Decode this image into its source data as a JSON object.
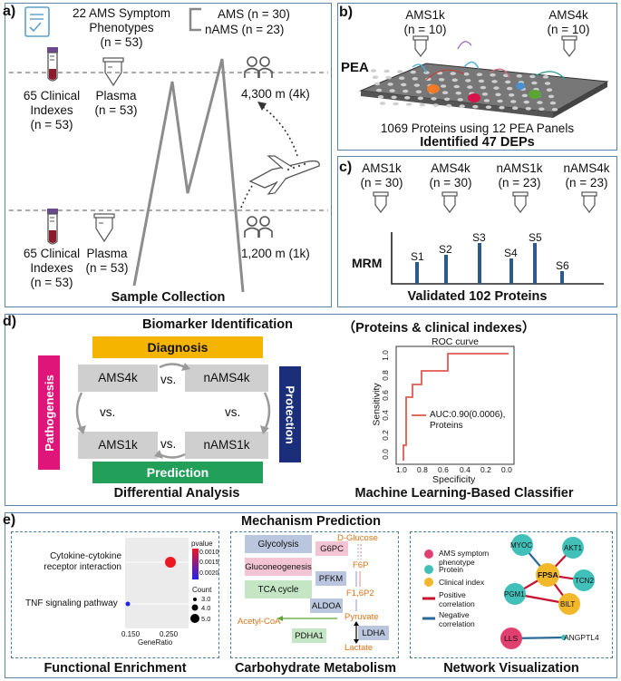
{
  "panel_a": {
    "label": "a)",
    "symptom_title_line1": "22 AMS Symptom",
    "symptom_title_line2": "Phenotypes",
    "symptom_n": "(n = 53)",
    "ams_group": "AMS (n = 30)",
    "nams_group": "nAMS (n = 23)",
    "clinical_4k_line1": "65 Clinical",
    "clinical_4k_line2": "Indexes",
    "clinical_4k_n": "(n = 53)",
    "plasma_4k_label": "Plasma",
    "plasma_4k_n": "(n = 53)",
    "altitude_high": "4,300 m (4k)",
    "clinical_1k_line1": "65 Clinical",
    "clinical_1k_line2": "Indexes",
    "clinical_1k_n": "(n = 53)",
    "plasma_1k_label": "Plasma",
    "plasma_1k_n": "(n = 53)",
    "altitude_low": "1,200 m (1k)",
    "title": "Sample Collection"
  },
  "panel_b": {
    "label": "b)",
    "ams1k": "AMS1k",
    "ams1k_n": "(n = 10)",
    "ams4k": "AMS4k",
    "ams4k_n": "(n = 10)",
    "pea": "PEA",
    "proteins_text": "1069 Proteins using 12 PEA Panels",
    "deps": "Identified 47 DEPs"
  },
  "panel_c": {
    "label": "c)",
    "groups": [
      {
        "name": "AMS1k",
        "n": "(n = 30)"
      },
      {
        "name": "AMS4k",
        "n": "(n = 30)"
      },
      {
        "name": "nAMS1k",
        "n": "(n = 23)"
      },
      {
        "name": "nAMS4k",
        "n": "(n = 23)"
      }
    ],
    "mrm": "MRM",
    "peaks": [
      "S1",
      "S2",
      "S3",
      "S4",
      "S5",
      "S6"
    ],
    "validated": "Validated 102 Proteins"
  },
  "panel_d": {
    "label": "d)",
    "biomarker_title": "Biomarker Identification",
    "subtitle": "（Proteins & clinical indexes）",
    "diagnosis": "Diagnosis",
    "pathogenesis": "Pathogenesis",
    "protection": "Protection",
    "prediction": "Prediction",
    "ams4k": "AMS4k",
    "nams4k": "nAMS4k",
    "ams1k": "AMS1k",
    "nams1k": "nAMS1k",
    "vs": "vs.",
    "differential": "Differential Analysis",
    "classifier": "Machine Learning-Based Classifier",
    "roc": {
      "title": "ROC curve",
      "ylabel": "Sensitivity",
      "xlabel": "Specificity",
      "yticks": [
        "0.0",
        "0.2",
        "0.4",
        "0.6",
        "0.8",
        "1.0"
      ],
      "xticks": [
        "1.0",
        "0.8",
        "0.6",
        "0.4",
        "0.2",
        "0.0"
      ],
      "legend_line1": "AUC:0.90(0.0006),",
      "legend_line2": "Proteins",
      "color": "#e05a4e"
    }
  },
  "panel_e": {
    "label": "e)",
    "title": "Mechanism Prediction",
    "functional": {
      "title": "Functional Enrichment",
      "term1_line1": "Cytokine-cytokine",
      "term1_line2": "receptor interaction",
      "term2": "TNF signaling pathway",
      "xlabel": "GeneRatio",
      "xticks": [
        "0.150",
        "0.250"
      ],
      "pvalue_label": "pvalue",
      "pvalue_ticks": [
        "0.0010",
        "0.0015",
        "0.0020"
      ],
      "count_label": "Count",
      "count_ticks": [
        "3.0",
        "4.0",
        "5.0"
      ]
    },
    "carbohydrate": {
      "title": "Carbohydrate Metabolism",
      "glycolysis": "Glycolysis",
      "gluconeogenesis": "Gluconeogenesis",
      "tca": "TCA cycle",
      "g6pc": "G6PC",
      "pfkm": "PFKM",
      "aldoa": "ALDOA",
      "pdha1": "PDHA1",
      "ldha": "LDHA",
      "d_glucose": "D-Glucose",
      "f6p": "F6P",
      "f16p2": "F1,6P2",
      "pyruvate": "Pyruvate",
      "acetyl_coa": "Acetyl-CoA",
      "lactate": "Lactate"
    },
    "network": {
      "title": "Network Visualization",
      "legend": {
        "ams": "AMS symptom phenotype",
        "protein": "Protein",
        "clinical": "Clinical index",
        "positive": "Positive correlation",
        "negative": "Negative correlation"
      },
      "nodes": {
        "myoc": "MYOC",
        "akt1": "AKT1",
        "fpsa": "FPSA",
        "tcn2": "TCN2",
        "pgm1": "PGM1",
        "bilt": "BILT",
        "lls": "LLS",
        "angptl4": "ANGPTL4"
      }
    }
  }
}
